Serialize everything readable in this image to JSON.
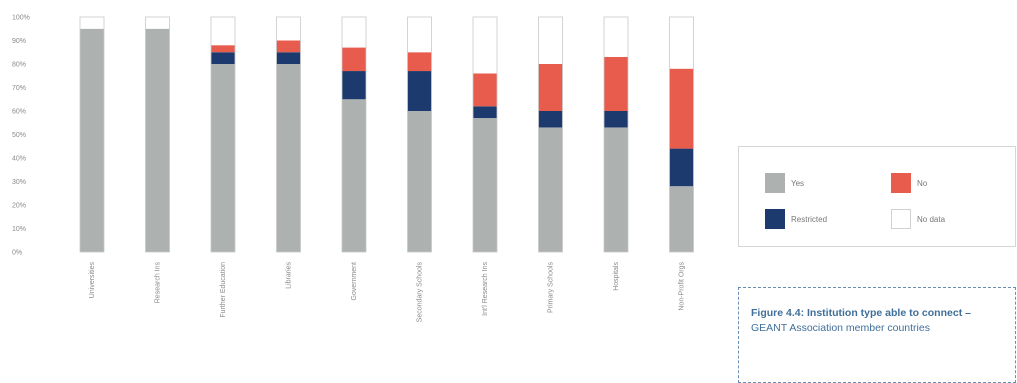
{
  "chart_data": {
    "type": "bar",
    "stacked": true,
    "categories": [
      "Universities",
      "Research Ins",
      "Further Education",
      "Libraries",
      "Government",
      "Secondary Schools",
      "Int'l Research Ins",
      "Primary Schools",
      "Hospitals",
      "Non-Profit Orgs"
    ],
    "series": [
      {
        "name": "Yes",
        "color": "#adb1b0",
        "values": [
          95,
          95,
          80,
          80,
          65,
          60,
          57,
          53,
          53,
          28
        ]
      },
      {
        "name": "Restricted",
        "color": "#1c3a6e",
        "values": [
          0,
          0,
          5,
          5,
          12,
          17,
          5,
          7,
          7,
          16
        ]
      },
      {
        "name": "No",
        "color": "#e85c4e",
        "values": [
          0,
          0,
          3,
          5,
          10,
          8,
          14,
          20,
          23,
          34
        ]
      },
      {
        "name": "No data",
        "color": "#ffffff",
        "values": [
          5,
          5,
          12,
          10,
          13,
          15,
          24,
          20,
          17,
          22
        ]
      }
    ],
    "yticks": [
      "0%",
      "10%",
      "20%",
      "30%",
      "40%",
      "50%",
      "60%",
      "70%",
      "80%",
      "90%",
      "100%"
    ],
    "ylim": [
      0,
      100
    ],
    "legend_position": "right"
  },
  "legend": {
    "yes": "Yes",
    "no": "No",
    "restricted": "Restricted",
    "no_data": "No data"
  },
  "caption": {
    "bold": "Figure 4.4: Institution type able to connect –",
    "rest": "GEANT Association member countries"
  },
  "colors": {
    "yes": "#adb1b0",
    "restricted": "#1c3a6e",
    "no": "#e85c4e",
    "no_data_border": "#d0d0d0",
    "caption": "#3f6f9a"
  }
}
